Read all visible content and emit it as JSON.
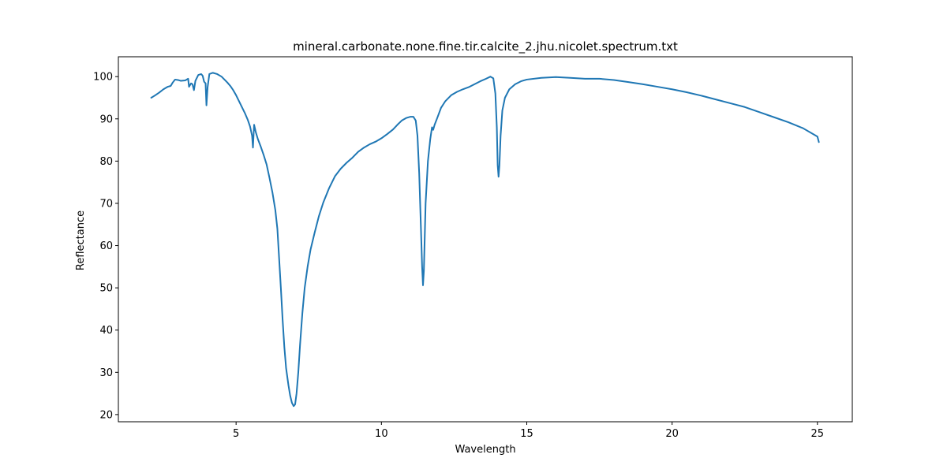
{
  "chart_data": {
    "type": "line",
    "title": "mineral.carbonate.none.fine.tir.calcite_2.jhu.nicolet.spectrum.txt",
    "xlabel": "Wavelength",
    "ylabel": "Reflectance",
    "xlim": [
      0.95,
      26.2
    ],
    "ylim": [
      18.3,
      104.7
    ],
    "xticks": [
      5,
      10,
      15,
      20,
      25
    ],
    "yticks": [
      20,
      30,
      40,
      50,
      60,
      70,
      80,
      90,
      100
    ],
    "grid": false,
    "legend": "none",
    "series": [
      {
        "color": "#1f77b4",
        "points": [
          [
            2.08,
            95.0
          ],
          [
            2.2,
            95.5
          ],
          [
            2.35,
            96.2
          ],
          [
            2.5,
            97.0
          ],
          [
            2.65,
            97.6
          ],
          [
            2.75,
            97.8
          ],
          [
            2.82,
            98.6
          ],
          [
            2.9,
            99.3
          ],
          [
            3.0,
            99.2
          ],
          [
            3.1,
            99.0
          ],
          [
            3.25,
            99.1
          ],
          [
            3.35,
            99.5
          ],
          [
            3.38,
            97.6
          ],
          [
            3.45,
            98.4
          ],
          [
            3.5,
            98.2
          ],
          [
            3.55,
            96.8
          ],
          [
            3.6,
            99.0
          ],
          [
            3.7,
            100.4
          ],
          [
            3.8,
            100.6
          ],
          [
            3.85,
            100.2
          ],
          [
            3.9,
            98.8
          ],
          [
            3.95,
            98.4
          ],
          [
            3.98,
            93.2
          ],
          [
            4.02,
            97.5
          ],
          [
            4.08,
            100.6
          ],
          [
            4.2,
            100.9
          ],
          [
            4.35,
            100.6
          ],
          [
            4.5,
            100.0
          ],
          [
            4.6,
            99.3
          ],
          [
            4.7,
            98.6
          ],
          [
            4.8,
            97.8
          ],
          [
            4.9,
            96.8
          ],
          [
            5.0,
            95.6
          ],
          [
            5.1,
            94.2
          ],
          [
            5.2,
            92.8
          ],
          [
            5.3,
            91.4
          ],
          [
            5.4,
            89.8
          ],
          [
            5.48,
            88.2
          ],
          [
            5.55,
            86.0
          ],
          [
            5.58,
            83.2
          ],
          [
            5.62,
            88.6
          ],
          [
            5.68,
            86.8
          ],
          [
            5.75,
            85.2
          ],
          [
            5.85,
            83.4
          ],
          [
            5.95,
            81.4
          ],
          [
            6.05,
            79.2
          ],
          [
            6.15,
            76.0
          ],
          [
            6.25,
            72.6
          ],
          [
            6.35,
            68.4
          ],
          [
            6.42,
            64.0
          ],
          [
            6.48,
            57.0
          ],
          [
            6.54,
            50.0
          ],
          [
            6.6,
            42.5
          ],
          [
            6.66,
            36.0
          ],
          [
            6.72,
            31.0
          ],
          [
            6.8,
            27.0
          ],
          [
            6.86,
            24.5
          ],
          [
            6.92,
            22.8
          ],
          [
            6.98,
            22.0
          ],
          [
            7.03,
            22.4
          ],
          [
            7.08,
            25.0
          ],
          [
            7.14,
            30.0
          ],
          [
            7.2,
            36.5
          ],
          [
            7.28,
            44.0
          ],
          [
            7.36,
            50.0
          ],
          [
            7.46,
            55.0
          ],
          [
            7.56,
            59.0
          ],
          [
            7.7,
            63.0
          ],
          [
            7.85,
            67.0
          ],
          [
            8.0,
            70.2
          ],
          [
            8.2,
            73.6
          ],
          [
            8.4,
            76.4
          ],
          [
            8.6,
            78.2
          ],
          [
            8.8,
            79.6
          ],
          [
            9.0,
            80.8
          ],
          [
            9.2,
            82.2
          ],
          [
            9.4,
            83.2
          ],
          [
            9.6,
            84.0
          ],
          [
            9.8,
            84.6
          ],
          [
            10.0,
            85.4
          ],
          [
            10.2,
            86.4
          ],
          [
            10.4,
            87.5
          ],
          [
            10.55,
            88.6
          ],
          [
            10.7,
            89.6
          ],
          [
            10.85,
            90.2
          ],
          [
            11.0,
            90.5
          ],
          [
            11.1,
            90.5
          ],
          [
            11.18,
            89.6
          ],
          [
            11.24,
            86.0
          ],
          [
            11.3,
            77.0
          ],
          [
            11.36,
            64.0
          ],
          [
            11.4,
            55.0
          ],
          [
            11.43,
            50.6
          ],
          [
            11.46,
            54.0
          ],
          [
            11.52,
            70.0
          ],
          [
            11.6,
            80.0
          ],
          [
            11.68,
            85.2
          ],
          [
            11.74,
            88.0
          ],
          [
            11.78,
            87.4
          ],
          [
            11.83,
            88.6
          ],
          [
            11.92,
            90.2
          ],
          [
            12.05,
            92.6
          ],
          [
            12.2,
            94.2
          ],
          [
            12.4,
            95.6
          ],
          [
            12.6,
            96.4
          ],
          [
            12.8,
            97.0
          ],
          [
            13.0,
            97.5
          ],
          [
            13.2,
            98.2
          ],
          [
            13.4,
            98.9
          ],
          [
            13.6,
            99.5
          ],
          [
            13.75,
            100.0
          ],
          [
            13.85,
            99.6
          ],
          [
            13.92,
            96.0
          ],
          [
            13.97,
            88.0
          ],
          [
            14.0,
            79.0
          ],
          [
            14.03,
            76.3
          ],
          [
            14.06,
            79.0
          ],
          [
            14.1,
            86.0
          ],
          [
            14.16,
            92.0
          ],
          [
            14.25,
            95.0
          ],
          [
            14.4,
            97.0
          ],
          [
            14.6,
            98.2
          ],
          [
            14.8,
            98.9
          ],
          [
            15.0,
            99.3
          ],
          [
            15.5,
            99.7
          ],
          [
            16.0,
            99.9
          ],
          [
            16.5,
            99.7
          ],
          [
            17.0,
            99.5
          ],
          [
            17.5,
            99.5
          ],
          [
            18.0,
            99.2
          ],
          [
            18.5,
            98.7
          ],
          [
            19.0,
            98.2
          ],
          [
            19.5,
            97.6
          ],
          [
            20.0,
            97.0
          ],
          [
            20.5,
            96.3
          ],
          [
            21.0,
            95.5
          ],
          [
            21.5,
            94.6
          ],
          [
            22.0,
            93.7
          ],
          [
            22.5,
            92.8
          ],
          [
            23.0,
            91.6
          ],
          [
            23.5,
            90.4
          ],
          [
            24.0,
            89.2
          ],
          [
            24.5,
            87.8
          ],
          [
            25.0,
            85.8
          ],
          [
            25.05,
            84.5
          ]
        ]
      }
    ]
  }
}
